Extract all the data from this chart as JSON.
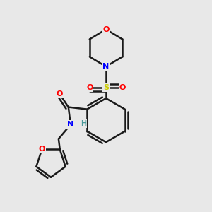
{
  "background_color": "#e8e8e8",
  "bond_color": "#1a1a1a",
  "atom_colors": {
    "O": "#ff0000",
    "N": "#0000ff",
    "S": "#cccc00",
    "C": "#1a1a1a",
    "H": "#4a9a9a"
  },
  "figsize": [
    3.0,
    3.0
  ],
  "dpi": 100
}
